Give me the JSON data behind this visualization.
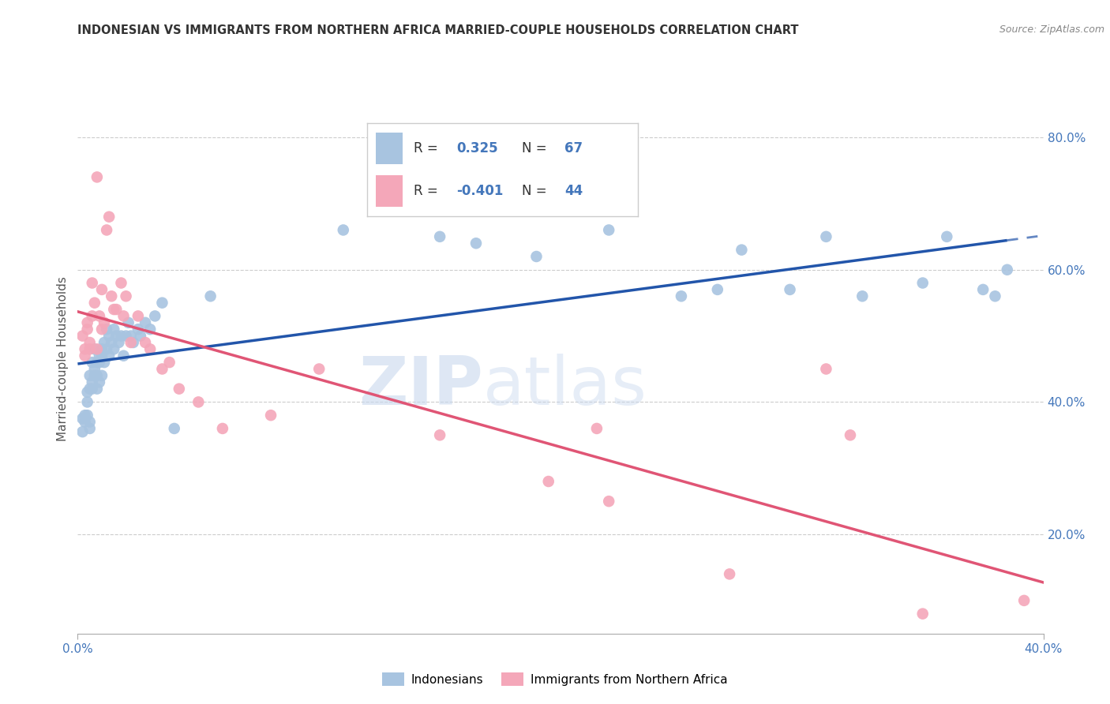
{
  "title": "INDONESIAN VS IMMIGRANTS FROM NORTHERN AFRICA MARRIED-COUPLE HOUSEHOLDS CORRELATION CHART",
  "source": "Source: ZipAtlas.com",
  "ylabel": "Married-couple Households",
  "watermark_zip": "ZIP",
  "watermark_atlas": "atlas",
  "xmin": 0.0,
  "xmax": 0.4,
  "ymin": 0.05,
  "ymax": 0.88,
  "yticks": [
    0.2,
    0.4,
    0.6,
    0.8
  ],
  "ytick_labels": [
    "20.0%",
    "40.0%",
    "60.0%",
    "80.0%"
  ],
  "blue_color": "#a8c4e0",
  "pink_color": "#f4a7b9",
  "blue_line_color": "#2255aa",
  "pink_line_color": "#e05575",
  "grid_color": "#cccccc",
  "background_color": "#ffffff",
  "legend_r1_label": "R = ",
  "legend_v1": "0.325",
  "legend_n1_label": "N = ",
  "legend_nv1": "67",
  "legend_r2_label": "R = ",
  "legend_v2": "-0.401",
  "legend_n2_label": "N = ",
  "legend_nv2": "44",
  "label_blue": "Indonesians",
  "label_pink": "Immigrants from Northern Africa",
  "indonesian_x": [
    0.002,
    0.002,
    0.003,
    0.003,
    0.004,
    0.004,
    0.004,
    0.005,
    0.005,
    0.005,
    0.005,
    0.006,
    0.006,
    0.006,
    0.007,
    0.007,
    0.007,
    0.008,
    0.008,
    0.008,
    0.009,
    0.009,
    0.009,
    0.01,
    0.01,
    0.01,
    0.011,
    0.011,
    0.012,
    0.012,
    0.013,
    0.013,
    0.014,
    0.015,
    0.015,
    0.016,
    0.017,
    0.018,
    0.019,
    0.02,
    0.021,
    0.022,
    0.023,
    0.025,
    0.026,
    0.028,
    0.03,
    0.032,
    0.035,
    0.04,
    0.055,
    0.11,
    0.15,
    0.165,
    0.19,
    0.22,
    0.25,
    0.265,
    0.275,
    0.295,
    0.31,
    0.325,
    0.35,
    0.36,
    0.375,
    0.38,
    0.385
  ],
  "indonesian_y": [
    0.375,
    0.355,
    0.38,
    0.37,
    0.4,
    0.415,
    0.38,
    0.44,
    0.42,
    0.37,
    0.36,
    0.43,
    0.46,
    0.42,
    0.45,
    0.44,
    0.48,
    0.46,
    0.44,
    0.42,
    0.47,
    0.46,
    0.43,
    0.48,
    0.47,
    0.44,
    0.49,
    0.46,
    0.48,
    0.51,
    0.5,
    0.47,
    0.49,
    0.51,
    0.48,
    0.5,
    0.49,
    0.5,
    0.47,
    0.5,
    0.52,
    0.5,
    0.49,
    0.51,
    0.5,
    0.52,
    0.51,
    0.53,
    0.55,
    0.36,
    0.56,
    0.66,
    0.65,
    0.64,
    0.62,
    0.66,
    0.56,
    0.57,
    0.63,
    0.57,
    0.65,
    0.56,
    0.58,
    0.65,
    0.57,
    0.56,
    0.6
  ],
  "northern_africa_x": [
    0.002,
    0.003,
    0.003,
    0.004,
    0.004,
    0.005,
    0.005,
    0.006,
    0.006,
    0.007,
    0.008,
    0.008,
    0.009,
    0.01,
    0.01,
    0.011,
    0.012,
    0.013,
    0.014,
    0.015,
    0.016,
    0.018,
    0.019,
    0.02,
    0.022,
    0.025,
    0.028,
    0.03,
    0.035,
    0.038,
    0.042,
    0.05,
    0.06,
    0.08,
    0.1,
    0.15,
    0.195,
    0.215,
    0.22,
    0.27,
    0.31,
    0.32,
    0.35,
    0.392
  ],
  "northern_africa_y": [
    0.5,
    0.48,
    0.47,
    0.51,
    0.52,
    0.49,
    0.48,
    0.53,
    0.58,
    0.55,
    0.74,
    0.48,
    0.53,
    0.51,
    0.57,
    0.52,
    0.66,
    0.68,
    0.56,
    0.54,
    0.54,
    0.58,
    0.53,
    0.56,
    0.49,
    0.53,
    0.49,
    0.48,
    0.45,
    0.46,
    0.42,
    0.4,
    0.36,
    0.38,
    0.45,
    0.35,
    0.28,
    0.36,
    0.25,
    0.14,
    0.45,
    0.35,
    0.08,
    0.1
  ]
}
